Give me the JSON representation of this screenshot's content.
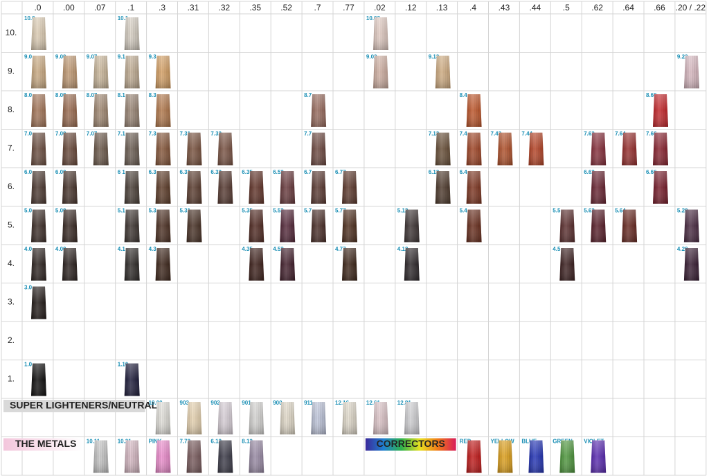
{
  "columns": [
    ".0",
    ".00",
    ".07",
    ".1",
    ".3",
    ".31",
    ".32",
    ".35",
    ".52",
    ".7",
    ".77",
    ".02",
    ".12",
    ".13",
    ".4",
    ".43",
    ".44",
    ".5",
    ".62",
    ".64",
    ".66",
    ".20 / .22"
  ],
  "rows": [
    {
      "label": "10.",
      "cells": [
        {
          "label": "10.0",
          "color": "#e3d2b8"
        },
        null,
        null,
        {
          "label": "10.1",
          "color": "#d8d0c4"
        },
        null,
        null,
        null,
        null,
        null,
        null,
        null,
        {
          "label": "10.02",
          "color": "#e6cfc6"
        },
        null,
        null,
        null,
        null,
        null,
        null,
        null,
        null,
        null,
        null
      ]
    },
    {
      "label": "9.",
      "cells": [
        {
          "label": "9.0",
          "color": "#cfae85"
        },
        {
          "label": "9.00",
          "color": "#c49c75"
        },
        {
          "label": "9.07",
          "color": "#cdb99c"
        },
        {
          "label": "9.1",
          "color": "#c1ad93"
        },
        {
          "label": "9.3",
          "color": "#d8a265"
        },
        null,
        null,
        null,
        null,
        null,
        null,
        {
          "label": "9.02",
          "color": "#d4b3a5"
        },
        null,
        {
          "label": "9.13",
          "color": "#d5b084"
        },
        null,
        null,
        null,
        null,
        null,
        null,
        null,
        {
          "label": "9.22",
          "color": "#dcbcc4"
        }
      ]
    },
    {
      "label": "8.",
      "cells": [
        {
          "label": "8.0",
          "color": "#a7785a"
        },
        {
          "label": "8.00",
          "color": "#9e6e52"
        },
        {
          "label": "8.07",
          "color": "#a38a73"
        },
        {
          "label": "8.1",
          "color": "#9a8574"
        },
        {
          "label": "8.3",
          "color": "#b57a4c"
        },
        null,
        null,
        null,
        null,
        {
          "label": "8.7",
          "color": "#9a6c5e"
        },
        null,
        null,
        null,
        null,
        {
          "label": "8.4",
          "color": "#c2572a"
        },
        null,
        null,
        null,
        null,
        null,
        {
          "label": "8.66",
          "color": "#c8262a"
        },
        null
      ]
    },
    {
      "label": "7.",
      "cells": [
        {
          "label": "7.0",
          "color": "#6e5042"
        },
        {
          "label": "7.00",
          "color": "#6b4a3b"
        },
        {
          "label": "7.07",
          "color": "#6e5b4c"
        },
        {
          "label": "7.1",
          "color": "#6c5e53"
        },
        {
          "label": "7.3",
          "color": "#87573a"
        },
        {
          "label": "7.31",
          "color": "#7c5440"
        },
        {
          "label": "7.32",
          "color": "#7d5545"
        },
        null,
        null,
        {
          "label": "7.7",
          "color": "#6f4a42"
        },
        null,
        null,
        null,
        {
          "label": "7.13",
          "color": "#6a5038"
        },
        {
          "label": "7.4",
          "color": "#a34626"
        },
        {
          "label": "7.43",
          "color": "#b3512a"
        },
        {
          "label": "7.44",
          "color": "#b84426"
        },
        null,
        {
          "label": "7.62",
          "color": "#8a2f3c"
        },
        {
          "label": "7.64",
          "color": "#9b2f2e"
        },
        {
          "label": "7.66",
          "color": "#8c2330"
        },
        null
      ]
    },
    {
      "label": "6.",
      "cells": [
        {
          "label": "6.0",
          "color": "#4e3a32"
        },
        {
          "label": "6.00",
          "color": "#4a362d"
        },
        null,
        {
          "label": "6 1",
          "color": "#4b4038"
        },
        {
          "label": "6.3",
          "color": "#5e3c28"
        },
        {
          "label": "6.31",
          "color": "#5d3e30"
        },
        {
          "label": "6.32",
          "color": "#5a3c33"
        },
        {
          "label": "6.35",
          "color": "#64352a"
        },
        {
          "label": "6.52",
          "color": "#6a3a3d"
        },
        {
          "label": "6.7",
          "color": "#5c3a32"
        },
        {
          "label": "6.77",
          "color": "#5f3a2e"
        },
        null,
        null,
        {
          "label": "6.13",
          "color": "#4f3a2c"
        },
        {
          "label": "6.4",
          "color": "#7f3520"
        },
        null,
        null,
        null,
        {
          "label": "6.62",
          "color": "#6b2432"
        },
        null,
        {
          "label": "6.66",
          "color": "#7a1d2b"
        },
        null
      ]
    },
    {
      "label": "5.",
      "cells": [
        {
          "label": "5.0",
          "color": "#3f2f29"
        },
        {
          "label": "5.00",
          "color": "#3a2a24"
        },
        null,
        {
          "label": "5.1",
          "color": "#3d3430"
        },
        {
          "label": "5.3",
          "color": "#4d3022"
        },
        {
          "label": "5.31",
          "color": "#4a3226"
        },
        null,
        {
          "label": "5.35",
          "color": "#522a22"
        },
        {
          "label": "5.52",
          "color": "#55283a"
        },
        {
          "label": "5.7",
          "color": "#4b2e28"
        },
        {
          "label": "5.77",
          "color": "#50301f"
        },
        null,
        {
          "label": "5.12",
          "color": "#3e3434"
        },
        null,
        {
          "label": "5.4",
          "color": "#6a2d1c"
        },
        null,
        null,
        {
          "label": "5.5",
          "color": "#5c2e2e"
        },
        {
          "label": "5.62",
          "color": "#5b1f2a"
        },
        {
          "label": "5.64",
          "color": "#6b2a22"
        },
        null,
        {
          "label": "5.20",
          "color": "#4a2a42"
        }
      ]
    },
    {
      "label": "4.",
      "cells": [
        {
          "label": "4.0",
          "color": "#2f2522"
        },
        {
          "label": "4.00",
          "color": "#2c221f"
        },
        null,
        {
          "label": "4.1",
          "color": "#2e2a28"
        },
        {
          "label": "4.3",
          "color": "#3e261a"
        },
        null,
        null,
        {
          "label": "4.35",
          "color": "#3f211b"
        },
        {
          "label": "4.52",
          "color": "#431f2c"
        },
        null,
        {
          "label": "4.77",
          "color": "#3e2619"
        },
        null,
        {
          "label": "4.12",
          "color": "#2e282b"
        },
        null,
        null,
        null,
        null,
        {
          "label": "4.5",
          "color": "#3d2020"
        },
        null,
        null,
        null,
        {
          "label": "4.20",
          "color": "#381d33"
        }
      ]
    },
    {
      "label": "3.",
      "cells": [
        {
          "label": "3.0",
          "color": "#231b18"
        },
        null,
        null,
        null,
        null,
        null,
        null,
        null,
        null,
        null,
        null,
        null,
        null,
        null,
        null,
        null,
        null,
        null,
        null,
        null,
        null,
        null
      ]
    },
    {
      "label": "2.",
      "cells": [
        null,
        null,
        null,
        null,
        null,
        null,
        null,
        null,
        null,
        null,
        null,
        null,
        null,
        null,
        null,
        null,
        null,
        null,
        null,
        null,
        null,
        null
      ]
    },
    {
      "label": "1.",
      "cells": [
        {
          "label": "1.0",
          "color": "#0e0d0d"
        },
        null,
        null,
        {
          "label": "1.10",
          "color": "#1c1b3a"
        },
        null,
        null,
        null,
        null,
        null,
        null,
        null,
        null,
        null,
        null,
        null,
        null,
        null,
        null,
        null,
        null,
        null,
        null
      ]
    }
  ],
  "super_lighteners": {
    "label": "SUPER LIGHTENERS/NEUTRAL",
    "cells": [
      null,
      null,
      null,
      null,
      {
        "label": "10.00",
        "color": "#e4e2dc"
      },
      {
        "label": "903",
        "color": "#ecd7b4"
      },
      {
        "label": "902",
        "color": "#ddd4dc"
      },
      {
        "label": "901",
        "color": "#d9d8d6"
      },
      {
        "label": "900",
        "color": "#e4dccb"
      },
      {
        "label": "911",
        "color": "#bfc6dc"
      },
      {
        "label": "12.16",
        "color": "#e3dccd"
      },
      {
        "label": "12.61",
        "color": "#e1c8cc"
      },
      {
        "label": "12.81",
        "color": "#d5d5d8"
      },
      null,
      null,
      null,
      null,
      null,
      null,
      null,
      null,
      null
    ]
  },
  "metals": {
    "label": "THE METALS",
    "correctors_label": "CORRECTORS",
    "cells": [
      null,
      null,
      {
        "label": "10.11",
        "color": "#c7c7c7"
      },
      {
        "label": "10.21",
        "color": "#d6b8c3"
      },
      {
        "label": "PINK",
        "color": "#f08ed0"
      },
      {
        "label": "7.72",
        "color": "#7b5c5e"
      },
      {
        "label": "6.12",
        "color": "#3d3c4a"
      },
      {
        "label": "8.12",
        "color": "#9c8da8"
      },
      null,
      null,
      null,
      null,
      null,
      null,
      {
        "label": "RED",
        "color": "#c51818"
      },
      {
        "label": "YELLOW",
        "color": "#e1a21a"
      },
      {
        "label": "BLUE",
        "color": "#2233b8"
      },
      {
        "label": "GREEN",
        "color": "#4f9a3d"
      },
      {
        "label": "VIOLET",
        "color": "#5b2ab6"
      },
      null,
      null,
      null
    ]
  }
}
